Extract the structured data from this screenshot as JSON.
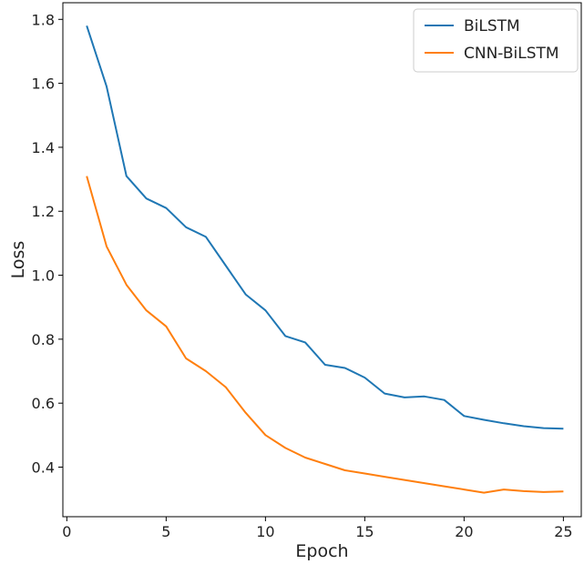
{
  "chart_data": {
    "type": "line",
    "xlabel": "Epoch",
    "ylabel": "Loss",
    "xlim": [
      -0.2,
      25.9
    ],
    "ylim": [
      0.245,
      1.852
    ],
    "xticks": [
      0,
      5,
      10,
      15,
      20,
      25
    ],
    "yticks": [
      0.4,
      0.6,
      0.8,
      1.0,
      1.2,
      1.4,
      1.6,
      1.8
    ],
    "grid": false,
    "legend": "top-right",
    "x": [
      1,
      2,
      3,
      4,
      5,
      6,
      7,
      8,
      9,
      10,
      11,
      12,
      13,
      14,
      15,
      16,
      17,
      18,
      19,
      20,
      21,
      22,
      23,
      24,
      25
    ],
    "series": [
      {
        "name": "BiLSTM",
        "color": "#1f77b4",
        "values": [
          1.78,
          1.59,
          1.31,
          1.24,
          1.21,
          1.15,
          1.12,
          1.03,
          0.94,
          0.89,
          0.81,
          0.79,
          0.72,
          0.71,
          0.68,
          0.63,
          0.618,
          0.621,
          0.61,
          0.56,
          0.548,
          0.537,
          0.528,
          0.522,
          0.52
        ]
      },
      {
        "name": "CNN-BiLSTM",
        "color": "#ff7f0e",
        "values": [
          1.31,
          1.09,
          0.97,
          0.89,
          0.84,
          0.74,
          0.7,
          0.65,
          0.57,
          0.5,
          0.46,
          0.43,
          0.41,
          0.39,
          0.38,
          0.37,
          0.36,
          0.35,
          0.34,
          0.33,
          0.32,
          0.33,
          0.325,
          0.322,
          0.324
        ]
      }
    ]
  }
}
